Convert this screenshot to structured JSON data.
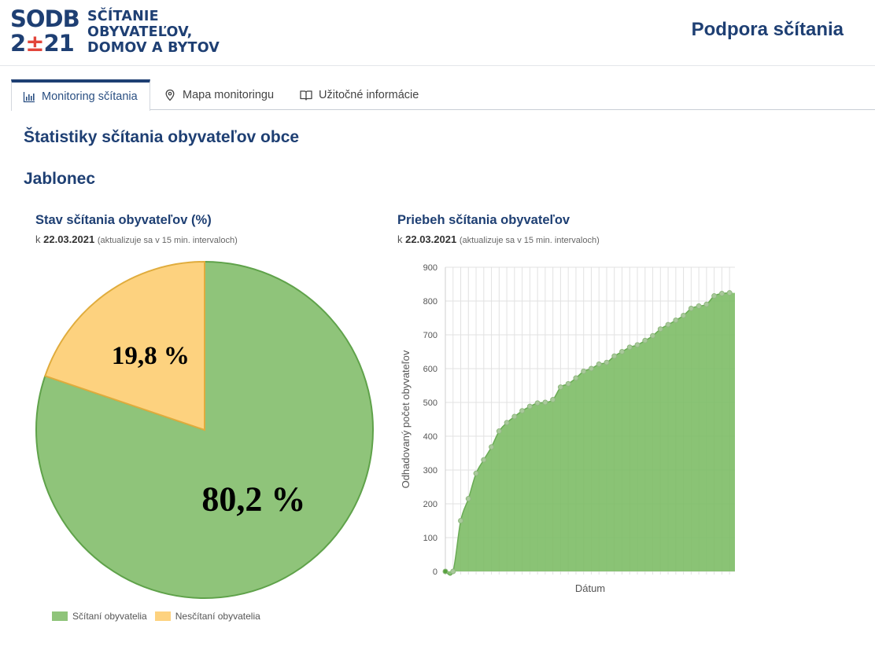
{
  "header": {
    "logo_row1": "SODB",
    "logo_row2_a": "2",
    "logo_row2_sign": "±",
    "logo_row2_b": "21",
    "logo_lines": [
      "SČÍTANIE",
      "OBYVATEĽOV,",
      "DOMOV A BYTOV"
    ],
    "support_link": "Podpora sčítania",
    "colors": {
      "brand": "#1e3f73",
      "accent": "#e2453b"
    }
  },
  "tabs": [
    {
      "label": "Monitoring sčítania",
      "icon": "bar-chart-icon",
      "active": true
    },
    {
      "label": "Mapa monitoringu",
      "icon": "map-pin-icon",
      "active": false
    },
    {
      "label": "Užitočné informácie",
      "icon": "open-book-icon",
      "active": false
    }
  ],
  "page": {
    "title": "Štatistiky sčítania obyvateľov obce",
    "municipality": "Jablonec"
  },
  "pie_card": {
    "title": "Stav sčítania obyvateľov (%)",
    "sub_prefix": "k",
    "date": "22.03.2021",
    "note": "(aktualizuje sa v 15 min. intervaloch)"
  },
  "line_card": {
    "title": "Priebeh sčítania obyvateľov",
    "sub_prefix": "k",
    "date": "22.03.2021",
    "note": "(aktualizuje sa v 15 min. intervaloch)"
  },
  "chart_data": [
    {
      "type": "pie",
      "slices": [
        {
          "name": "Sčítaní obyvatelia",
          "value": 80.2,
          "label": "80,2 %",
          "color": "#8fc47a",
          "border": "#5fa24a"
        },
        {
          "name": "Nesčítaní obyvatelia",
          "value": 19.8,
          "label": "19,8 %",
          "color": "#fdd27f",
          "border": "#e0ac3d"
        }
      ],
      "legend": [
        "Sčítaní obyvatelia",
        "Nesčítaní obyvatelia"
      ],
      "legend_position": "bottom"
    },
    {
      "type": "area",
      "xlabel": "Dátum",
      "ylabel": "Odhadovaný počet obyvateľov",
      "ylim": [
        0,
        900
      ],
      "yticks": [
        0,
        100,
        200,
        300,
        400,
        500,
        600,
        700,
        800,
        900
      ],
      "grid": true,
      "color": "#7dbd66",
      "values": [
        0,
        0,
        150,
        215,
        290,
        330,
        368,
        415,
        440,
        458,
        475,
        488,
        498,
        500,
        508,
        545,
        555,
        572,
        592,
        600,
        613,
        618,
        637,
        650,
        663,
        670,
        683,
        697,
        717,
        730,
        743,
        757,
        778,
        785,
        790,
        815,
        822,
        824
      ]
    }
  ]
}
